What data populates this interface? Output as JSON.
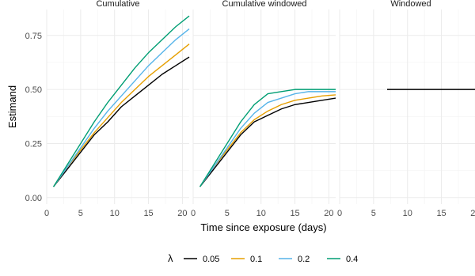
{
  "chart_data": {
    "type": "line",
    "ylabel": "Estimand",
    "xlabel": "Time since exposure (days)",
    "xlim": [
      0,
      21
    ],
    "ylim": [
      -0.03,
      0.87
    ],
    "x_ticks": [
      0,
      5,
      10,
      15,
      20
    ],
    "y_ticks": [
      0.0,
      0.25,
      0.5,
      0.75
    ],
    "y_tick_labels": [
      "0.00",
      "0.25",
      "0.50",
      "0.75"
    ],
    "grid": true,
    "legend": {
      "title": "λ",
      "placement": "bottom",
      "entries": [
        {
          "label": "0.05",
          "color": "#000000"
        },
        {
          "label": "0.1",
          "color": "#E69F00"
        },
        {
          "label": "0.2",
          "color": "#56B4E9"
        },
        {
          "label": "0.4",
          "color": "#009E73"
        }
      ]
    },
    "panels": [
      {
        "title": "Cumulative",
        "x": [
          1,
          3,
          5,
          7,
          9,
          11,
          13,
          15,
          17,
          19,
          21
        ],
        "series": [
          {
            "name": "0.05",
            "color": "#000000",
            "values": [
              0.05,
              0.13,
              0.21,
              0.29,
              0.35,
              0.42,
              0.47,
              0.52,
              0.57,
              0.61,
              0.65
            ]
          },
          {
            "name": "0.1",
            "color": "#E69F00",
            "values": [
              0.05,
              0.14,
              0.22,
              0.3,
              0.37,
              0.44,
              0.5,
              0.56,
              0.61,
              0.66,
              0.71
            ]
          },
          {
            "name": "0.2",
            "color": "#56B4E9",
            "values": [
              0.05,
              0.14,
              0.23,
              0.32,
              0.4,
              0.47,
              0.54,
              0.61,
              0.67,
              0.73,
              0.78
            ]
          },
          {
            "name": "0.4",
            "color": "#009E73",
            "values": [
              0.05,
              0.15,
              0.25,
              0.35,
              0.44,
              0.52,
              0.6,
              0.67,
              0.73,
              0.79,
              0.84
            ]
          }
        ]
      },
      {
        "title": "Cumulative windowed",
        "x": [
          1,
          3,
          5,
          7,
          9,
          11,
          13,
          15,
          17,
          19,
          21
        ],
        "series": [
          {
            "name": "0.05",
            "color": "#000000",
            "values": [
              0.05,
              0.13,
              0.21,
              0.29,
              0.35,
              0.38,
              0.41,
              0.43,
              0.44,
              0.45,
              0.46
            ]
          },
          {
            "name": "0.1",
            "color": "#E69F00",
            "values": [
              0.05,
              0.14,
              0.22,
              0.3,
              0.36,
              0.4,
              0.43,
              0.45,
              0.46,
              0.47,
              0.475
            ]
          },
          {
            "name": "0.2",
            "color": "#56B4E9",
            "values": [
              0.05,
              0.14,
              0.23,
              0.32,
              0.39,
              0.44,
              0.46,
              0.48,
              0.49,
              0.49,
              0.49
            ]
          },
          {
            "name": "0.4",
            "color": "#009E73",
            "values": [
              0.05,
              0.15,
              0.25,
              0.35,
              0.43,
              0.48,
              0.49,
              0.5,
              0.5,
              0.5,
              0.5
            ]
          }
        ]
      },
      {
        "title": "Windowed",
        "x": [
          7,
          21
        ],
        "series": [
          {
            "name": "0.05",
            "color": "#000000",
            "values": [
              0.5,
              0.5
            ]
          }
        ]
      }
    ]
  }
}
